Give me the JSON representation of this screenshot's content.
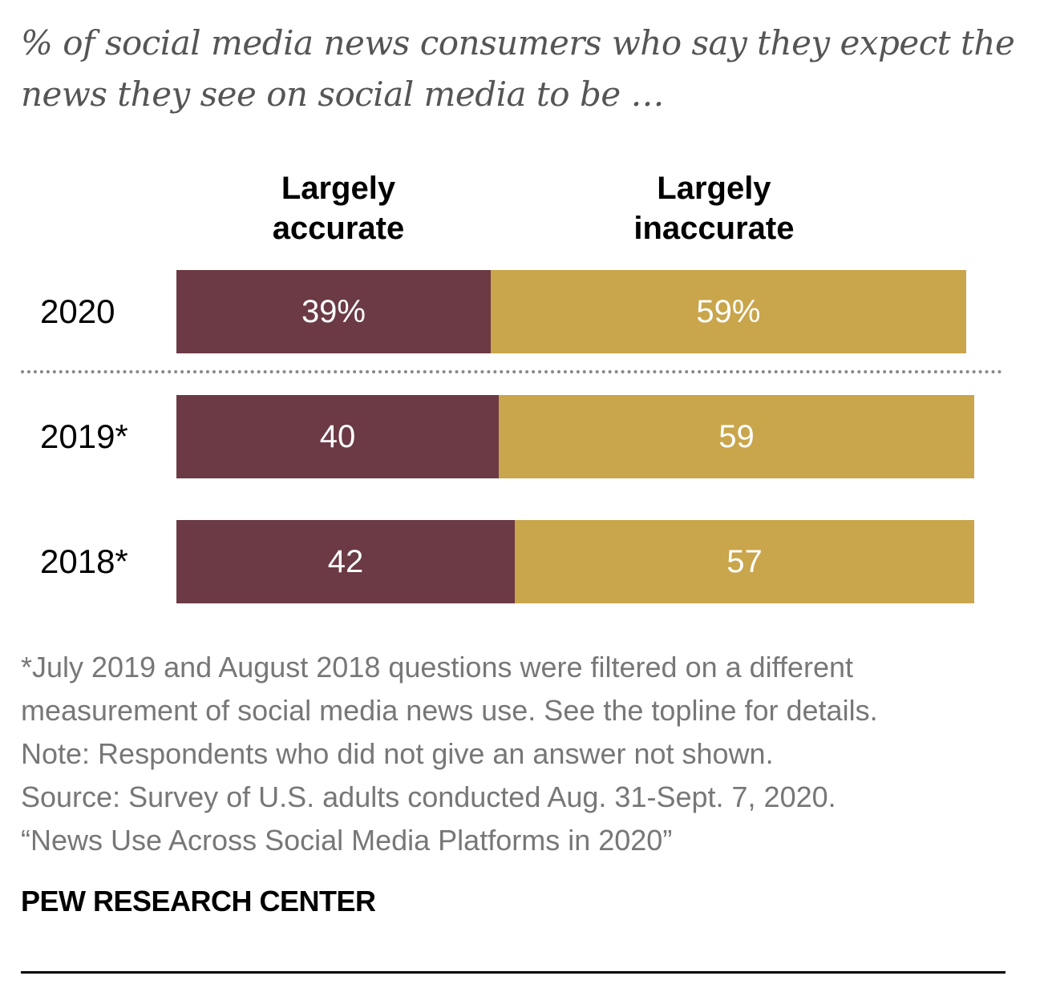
{
  "subtitle": "% of social media news consumers who say they expect the news they see on social media to be …",
  "colors": {
    "accurate": "#6b3a45",
    "inaccurate": "#c9a54b"
  },
  "chart_data": {
    "type": "bar",
    "orientation": "horizontal",
    "stacked": true,
    "categories": [
      "2020",
      "2019*",
      "2018*"
    ],
    "series": [
      {
        "name": "Largely accurate",
        "values": [
          39,
          40,
          42
        ],
        "labels": [
          "39%",
          "40",
          "42"
        ]
      },
      {
        "name": "Largely inaccurate",
        "values": [
          59,
          59,
          57
        ],
        "labels": [
          "59%",
          "59",
          "57"
        ]
      }
    ],
    "headers": {
      "accurate": [
        "Largely",
        "accurate"
      ],
      "inaccurate": [
        "Largely",
        "inaccurate"
      ]
    },
    "xlim": [
      0,
      100
    ]
  },
  "notes": [
    "*July 2019 and August 2018 questions were filtered on a different",
    "measurement of social media news use. See the topline for details.",
    "Note: Respondents who did not give an answer not shown.",
    "Source: Survey of U.S. adults conducted Aug. 31-Sept. 7, 2020.",
    "“News Use Across Social Media Platforms in 2020”"
  ],
  "source_org": "PEW RESEARCH CENTER"
}
